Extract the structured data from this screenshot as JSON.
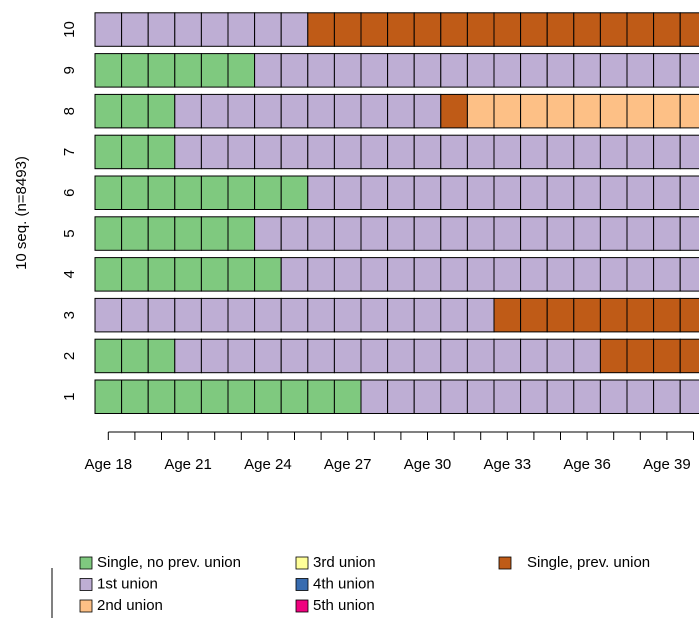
{
  "chart_data": {
    "type": "sequence",
    "ylabel": "10 seq. (n=8493)",
    "categories": [
      "Age 18",
      null,
      null,
      "Age 21",
      null,
      null,
      "Age 24",
      null,
      null,
      "Age 27",
      null,
      null,
      "Age 30",
      null,
      null,
      "Age 33",
      null,
      null,
      "Age 36",
      null,
      null,
      "Age 39",
      null
    ],
    "states": [
      {
        "name": "Single, no prev. union",
        "color": "#7fc97f"
      },
      {
        "name": "1st union",
        "color": "#beaed4"
      },
      {
        "name": "2nd union",
        "color": "#fdc086"
      },
      {
        "name": "3rd union",
        "color": "#ffff99"
      },
      {
        "name": "4th union",
        "color": "#386cb0"
      },
      {
        "name": "5th union",
        "color": "#f0027f"
      },
      {
        "name": "Single, prev. union",
        "color": "#bf5b17"
      }
    ],
    "sequences": [
      {
        "name": "1",
        "values": [
          0,
          0,
          0,
          0,
          0,
          0,
          0,
          0,
          0,
          0,
          1,
          1,
          1,
          1,
          1,
          1,
          1,
          1,
          1,
          1,
          1,
          1,
          1
        ]
      },
      {
        "name": "2",
        "values": [
          0,
          0,
          0,
          1,
          1,
          1,
          1,
          1,
          1,
          1,
          1,
          1,
          1,
          1,
          1,
          1,
          1,
          1,
          1,
          6,
          6,
          6,
          6
        ]
      },
      {
        "name": "3",
        "values": [
          1,
          1,
          1,
          1,
          1,
          1,
          1,
          1,
          1,
          1,
          1,
          1,
          1,
          1,
          1,
          6,
          6,
          6,
          6,
          6,
          6,
          6,
          6
        ]
      },
      {
        "name": "4",
        "values": [
          0,
          0,
          0,
          0,
          0,
          0,
          0,
          1,
          1,
          1,
          1,
          1,
          1,
          1,
          1,
          1,
          1,
          1,
          1,
          1,
          1,
          1,
          1
        ]
      },
      {
        "name": "5",
        "values": [
          0,
          0,
          0,
          0,
          0,
          0,
          1,
          1,
          1,
          1,
          1,
          1,
          1,
          1,
          1,
          1,
          1,
          1,
          1,
          1,
          1,
          1,
          1
        ]
      },
      {
        "name": "6",
        "values": [
          0,
          0,
          0,
          0,
          0,
          0,
          0,
          0,
          1,
          1,
          1,
          1,
          1,
          1,
          1,
          1,
          1,
          1,
          1,
          1,
          1,
          1,
          1
        ]
      },
      {
        "name": "7",
        "values": [
          0,
          0,
          0,
          1,
          1,
          1,
          1,
          1,
          1,
          1,
          1,
          1,
          1,
          1,
          1,
          1,
          1,
          1,
          1,
          1,
          1,
          1,
          1
        ]
      },
      {
        "name": "8",
        "values": [
          0,
          0,
          0,
          1,
          1,
          1,
          1,
          1,
          1,
          1,
          1,
          1,
          1,
          6,
          2,
          2,
          2,
          2,
          2,
          2,
          2,
          2,
          2
        ]
      },
      {
        "name": "9",
        "values": [
          0,
          0,
          0,
          0,
          0,
          0,
          1,
          1,
          1,
          1,
          1,
          1,
          1,
          1,
          1,
          1,
          1,
          1,
          1,
          1,
          1,
          1,
          1
        ]
      },
      {
        "name": "10",
        "values": [
          1,
          1,
          1,
          1,
          1,
          1,
          1,
          1,
          6,
          6,
          6,
          6,
          6,
          6,
          6,
          6,
          6,
          6,
          6,
          6,
          6,
          6,
          6
        ]
      }
    ]
  }
}
